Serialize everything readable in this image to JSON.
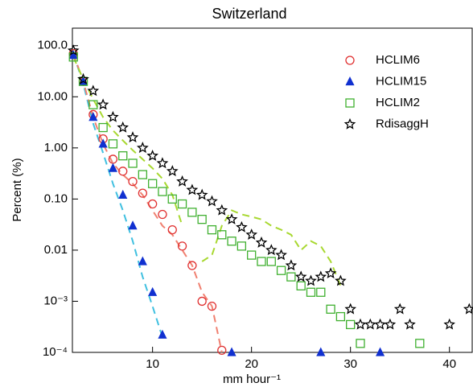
{
  "chart_data": {
    "type": "scatter",
    "title": "Switzerland",
    "xlabel": "mm hour⁻¹",
    "ylabel": "Percent (%)",
    "ylog": true,
    "legend": "upper right",
    "xlim": [
      1.9,
      42.3
    ],
    "ylim": [
      0.0001,
      220
    ],
    "xticks": [
      10,
      20,
      30,
      40
    ],
    "yticks": [
      {
        "value": 100,
        "label": "100.0"
      },
      {
        "value": 10,
        "label": "10.00"
      },
      {
        "value": 1,
        "label": "1.00"
      },
      {
        "value": 0.1,
        "label": "0.10"
      },
      {
        "value": 0.01,
        "label": "0.01"
      },
      {
        "value": 0.001,
        "label": "10⁻³"
      },
      {
        "value": 0.0001,
        "label": "10⁻⁴"
      }
    ],
    "lines": [
      {
        "color": "#40c0e0",
        "dash": "dashed",
        "x": [
          2,
          3,
          4,
          5,
          6,
          7,
          8,
          9,
          10,
          11
        ],
        "values": [
          70,
          18,
          3,
          0.8,
          0.2,
          0.06,
          0.015,
          0.003,
          0.0008,
          0.0002
        ]
      },
      {
        "color": "#f08070",
        "dash": "dashed",
        "x": [
          2,
          3,
          4,
          5,
          6,
          7,
          8,
          9,
          10,
          11,
          12,
          13,
          14,
          15,
          16,
          17
        ],
        "values": [
          70,
          20,
          4,
          1.2,
          0.5,
          0.3,
          0.2,
          0.12,
          0.06,
          0.03,
          0.02,
          0.01,
          0.005,
          0.0015,
          0.0008,
          0.0001
        ]
      },
      {
        "color": "#a8d830",
        "dash": "dashed",
        "x": [
          2,
          3,
          4,
          5,
          6,
          7,
          8,
          9,
          10,
          11,
          12,
          13,
          14,
          15,
          16,
          17,
          18,
          19,
          20,
          21,
          22,
          23,
          24,
          25,
          26,
          27,
          28,
          29
        ],
        "values": [
          60,
          22,
          9,
          4,
          2.2,
          1.4,
          0.9,
          0.6,
          0.4,
          0.25,
          0.12,
          0.03,
          null,
          0.006,
          0.008,
          0.03,
          0.06,
          0.05,
          0.045,
          0.04,
          0.03,
          0.025,
          0.02,
          0.01,
          0.015,
          0.012,
          0.006,
          0.002
        ]
      }
    ],
    "series": [
      {
        "name": "HCLIM6",
        "marker": "circle",
        "color": "#e03030",
        "x": [
          2,
          3,
          4,
          5,
          6,
          7,
          8,
          9,
          10,
          11,
          12,
          13,
          14,
          15,
          16,
          17
        ],
        "values": [
          70,
          20,
          4.5,
          1.5,
          0.6,
          0.35,
          0.22,
          0.13,
          0.08,
          0.05,
          0.025,
          0.012,
          0.005,
          0.001,
          0.0008,
          0.00011
        ]
      },
      {
        "name": "HCLIM15",
        "marker": "triangle",
        "color": "#1030d0",
        "x": [
          2,
          3,
          4,
          5,
          6,
          7,
          8,
          9,
          10,
          11,
          18,
          27,
          33
        ],
        "values": [
          65,
          20,
          4,
          1.2,
          0.4,
          0.12,
          0.03,
          0.006,
          0.0015,
          0.00022,
          0.0001,
          0.0001,
          0.0001
        ]
      },
      {
        "name": "HCLIM2",
        "marker": "square",
        "color": "#40b030",
        "x": [
          2,
          3,
          4,
          5,
          6,
          7,
          8,
          9,
          10,
          11,
          12,
          13,
          14,
          15,
          16,
          17,
          18,
          19,
          20,
          21,
          22,
          23,
          24,
          25,
          26,
          27,
          28,
          29,
          30,
          31,
          37
        ],
        "values": [
          60,
          20,
          7,
          2.5,
          1.2,
          0.7,
          0.5,
          0.3,
          0.2,
          0.14,
          0.1,
          0.08,
          0.055,
          0.04,
          0.025,
          0.02,
          0.015,
          0.012,
          0.008,
          0.006,
          0.006,
          0.004,
          0.003,
          0.002,
          0.0015,
          0.0015,
          0.0007,
          0.0005,
          0.00035,
          0.00015,
          0.00015
        ]
      },
      {
        "name": "RdisaggH",
        "marker": "star",
        "color": "#000000",
        "x": [
          2,
          3,
          4,
          5,
          6,
          7,
          8,
          9,
          10,
          11,
          12,
          13,
          14,
          15,
          16,
          17,
          18,
          19,
          20,
          21,
          22,
          23,
          24,
          25,
          26,
          27,
          28,
          29,
          30,
          31,
          32,
          33,
          34,
          35,
          36,
          40,
          42
        ],
        "values": [
          80,
          22,
          13,
          7,
          4,
          2.5,
          1.6,
          1.0,
          0.7,
          0.5,
          0.35,
          0.22,
          0.15,
          0.12,
          0.09,
          0.06,
          0.04,
          0.028,
          0.02,
          0.014,
          0.01,
          0.008,
          0.005,
          0.003,
          0.0025,
          0.003,
          0.0035,
          0.0025,
          0.0007,
          0.00035,
          0.00035,
          0.00035,
          0.00035,
          0.0007,
          0.00035,
          0.00035,
          0.0007
        ]
      }
    ]
  }
}
